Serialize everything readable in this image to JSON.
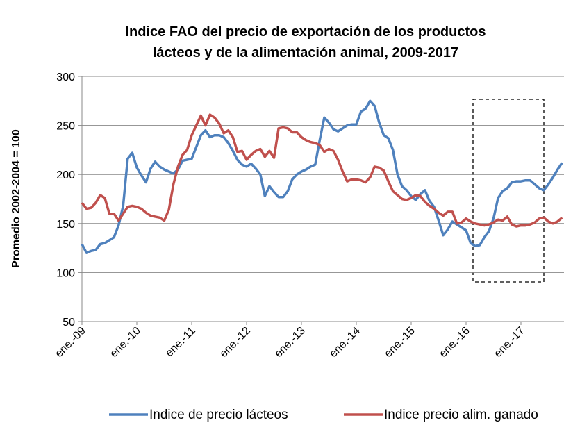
{
  "chart_data": {
    "type": "line",
    "title": [
      "Indice FAO del precio de exportación de los productos",
      "lácteos y de la alimentación animal, 2009-2017"
    ],
    "y_label": "Promedio 2002-2004 = 100",
    "categories": [
      "ene.-09",
      null,
      null,
      null,
      null,
      null,
      null,
      null,
      null,
      null,
      null,
      null,
      "ene.-10",
      null,
      null,
      null,
      null,
      null,
      null,
      null,
      null,
      null,
      null,
      null,
      "ene.-11",
      null,
      null,
      null,
      null,
      null,
      null,
      null,
      null,
      null,
      null,
      null,
      "ene.-12",
      null,
      null,
      null,
      null,
      null,
      null,
      null,
      null,
      null,
      null,
      null,
      "ene.-13",
      null,
      null,
      null,
      null,
      null,
      null,
      null,
      null,
      null,
      null,
      null,
      "ene.-14",
      null,
      null,
      null,
      null,
      null,
      null,
      null,
      null,
      null,
      null,
      null,
      "ene.-15",
      null,
      null,
      null,
      null,
      null,
      null,
      null,
      null,
      null,
      null,
      null,
      "ene.-16",
      null,
      null,
      null,
      null,
      null,
      null,
      null,
      null,
      null,
      null,
      null,
      "ene.-17",
      null,
      null,
      null,
      null,
      null,
      null,
      null,
      null,
      null
    ],
    "series": [
      {
        "name": "Indice de precio lácteos",
        "color": "#4f81bd",
        "values": [
          129,
          120,
          122,
          123,
          129,
          130,
          133,
          136,
          148,
          168,
          216,
          222,
          207,
          199,
          192,
          206,
          213,
          208,
          205,
          203,
          201,
          205,
          214,
          215,
          216,
          228,
          240,
          245,
          238,
          240,
          240,
          238,
          232,
          224,
          215,
          210,
          208,
          211,
          206,
          200,
          178,
          188,
          182,
          177,
          177,
          183,
          195,
          200,
          203,
          205,
          208,
          210,
          235,
          258,
          253,
          246,
          244,
          247,
          250,
          251,
          251,
          264,
          267,
          275,
          270,
          253,
          240,
          237,
          225,
          200,
          188,
          184,
          178,
          174,
          180,
          184,
          173,
          167,
          153,
          138,
          144,
          152,
          149,
          146,
          143,
          130,
          127,
          128,
          136,
          142,
          155,
          176,
          183,
          186,
          192,
          193,
          193,
          194,
          194,
          190,
          186,
          184,
          190,
          197,
          205,
          212
        ]
      },
      {
        "name": "Indice precio alim. ganado",
        "color": "#c0504d",
        "values": [
          171,
          165,
          166,
          171,
          179,
          176,
          160,
          160,
          153,
          160,
          167,
          168,
          167,
          165,
          161,
          158,
          157,
          156,
          153,
          164,
          190,
          208,
          220,
          225,
          240,
          250,
          260,
          250,
          261,
          258,
          252,
          242,
          245,
          238,
          223,
          224,
          215,
          220,
          224,
          226,
          218,
          224,
          217,
          247,
          248,
          247,
          243,
          243,
          238,
          235,
          233,
          232,
          230,
          223,
          226,
          224,
          215,
          203,
          193,
          195,
          195,
          194,
          192,
          197,
          208,
          207,
          204,
          193,
          183,
          179,
          175,
          174,
          176,
          179,
          178,
          172,
          168,
          165,
          161,
          158,
          162,
          162,
          150,
          151,
          155,
          152,
          150,
          149,
          148,
          149,
          151,
          154,
          153,
          157,
          149,
          147,
          148,
          148,
          149,
          151,
          155,
          156,
          152,
          150,
          152,
          156
        ]
      }
    ],
    "ylim": [
      50,
      300
    ],
    "yticks": [
      50,
      100,
      150,
      200,
      250,
      300
    ],
    "grid": true,
    "legend": "bottom"
  }
}
